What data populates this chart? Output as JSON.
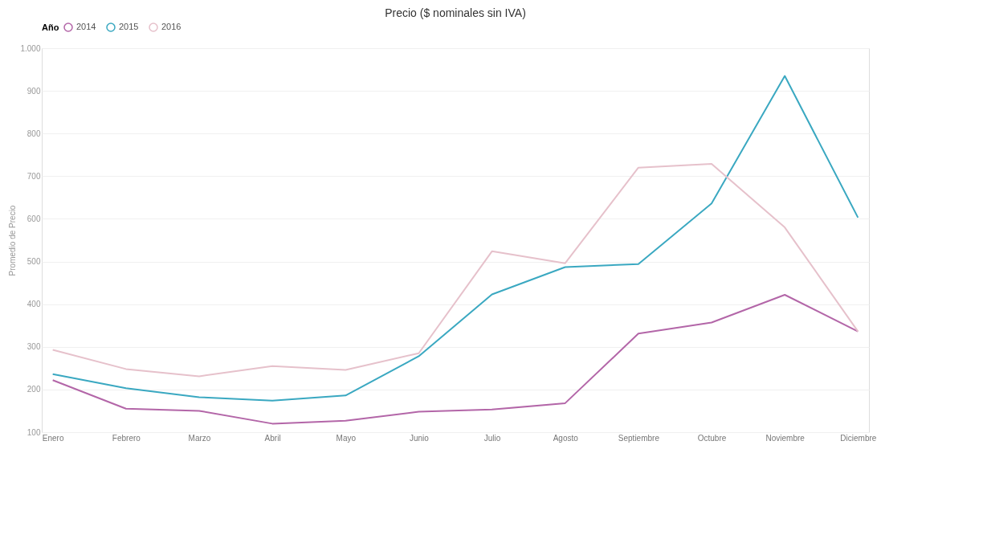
{
  "chart_data": {
    "type": "line",
    "title": "Precio ($ nominales sin IVA)",
    "ylabel": "Promedio de Precio",
    "legend_title": "Año",
    "categories": [
      "Enero",
      "Febrero",
      "Marzo",
      "Abril",
      "Mayo",
      "Junio",
      "Julio",
      "Agosto",
      "Septiembre",
      "Octubre",
      "Noviembre",
      "Diciembre"
    ],
    "series": [
      {
        "name": "2014",
        "color": "#b366a8",
        "values": [
          222,
          155,
          150,
          120,
          127,
          148,
          153,
          168,
          331,
          357,
          422,
          336
        ]
      },
      {
        "name": "2015",
        "color": "#3aa8c1",
        "values": [
          236,
          203,
          182,
          174,
          186,
          278,
          423,
          487,
          494,
          636,
          935,
          603
        ]
      },
      {
        "name": "2016",
        "color": "#e6c1cb",
        "values": [
          293,
          248,
          231,
          255,
          246,
          285,
          524,
          496,
          720,
          729,
          580,
          336
        ]
      }
    ],
    "ylim": [
      100,
      1000
    ],
    "yticks": [
      100,
      200,
      300,
      400,
      500,
      600,
      700,
      800,
      900,
      {
        "value": 1000,
        "label": "1.000"
      }
    ],
    "grid": "y",
    "legend": "top left",
    "marker": "none",
    "line_style": "solid"
  }
}
